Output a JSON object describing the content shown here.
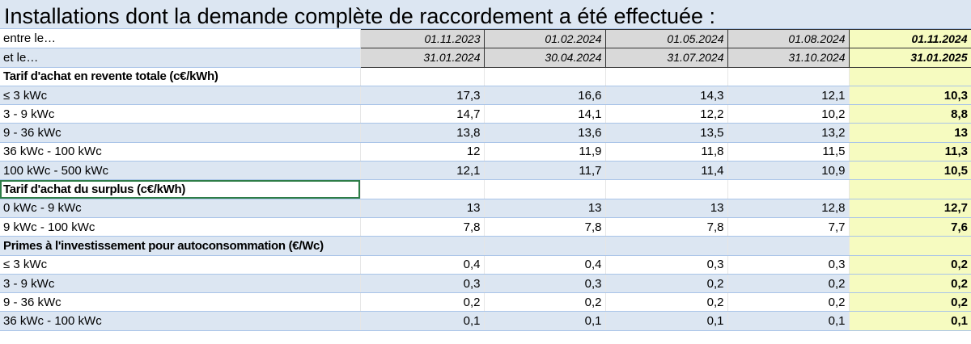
{
  "title": "Installations dont la demande complète de raccordement a été effectuée :",
  "periods": {
    "start_label": "entre le…",
    "end_label": "et le…",
    "start": [
      "01.11.2023",
      "01.02.2024",
      "01.05.2024",
      "01.08.2024",
      "01.11.2024"
    ],
    "end": [
      "31.01.2024",
      "30.04.2024",
      "31.07.2024",
      "31.10.2024",
      "31.01.2025"
    ]
  },
  "sections": [
    {
      "heading": "Tarif d'achat en revente totale (c€/kWh)",
      "rows": [
        {
          "label": "≤ 3 kWc",
          "values": [
            "17,3",
            "16,6",
            "14,3",
            "12,1",
            "10,3"
          ]
        },
        {
          "label": "3  - 9 kWc",
          "values": [
            "14,7",
            "14,1",
            "12,2",
            "10,2",
            "8,8"
          ]
        },
        {
          "label": "9 - 36 kWc",
          "values": [
            "13,8",
            "13,6",
            "13,5",
            "13,2",
            "13"
          ]
        },
        {
          "label": "36 kWc - 100 kWc",
          "values": [
            "12",
            "11,9",
            "11,8",
            "11,5",
            "11,3"
          ]
        },
        {
          "label": "100 kWc - 500 kWc",
          "values": [
            "12,1",
            "11,7",
            "11,4",
            "10,9",
            "10,5"
          ]
        }
      ]
    },
    {
      "heading": "Tarif d'achat du surplus (c€/kWh)",
      "rows": [
        {
          "label": "0 kWc - 9 kWc",
          "values": [
            "13",
            "13",
            "13",
            "12,8",
            "12,7"
          ]
        },
        {
          "label": "9 kWc - 100 kWc",
          "values": [
            "7,8",
            "7,8",
            "7,8",
            "7,7",
            "7,6"
          ]
        }
      ]
    },
    {
      "heading": "Primes à l'investissement pour autoconsommation (€/Wc)",
      "rows": [
        {
          "label": "≤ 3 kWc",
          "values": [
            "0,4",
            "0,4",
            "0,3",
            "0,3",
            "0,2"
          ]
        },
        {
          "label": "3  - 9 kWc",
          "values": [
            "0,3",
            "0,3",
            "0,2",
            "0,2",
            "0,2"
          ]
        },
        {
          "label": "9 - 36 kWc",
          "values": [
            "0,2",
            "0,2",
            "0,2",
            "0,2",
            "0,2"
          ]
        },
        {
          "label": "36 kWc - 100 kWc",
          "values": [
            "0,1",
            "0,1",
            "0,1",
            "0,1",
            "0,1"
          ]
        }
      ]
    }
  ],
  "colors": {
    "row_alt": "#dce6f2",
    "highlight": "#f6fbc0",
    "date_cell": "#d9d9d9",
    "selection": "#2e7d47"
  }
}
